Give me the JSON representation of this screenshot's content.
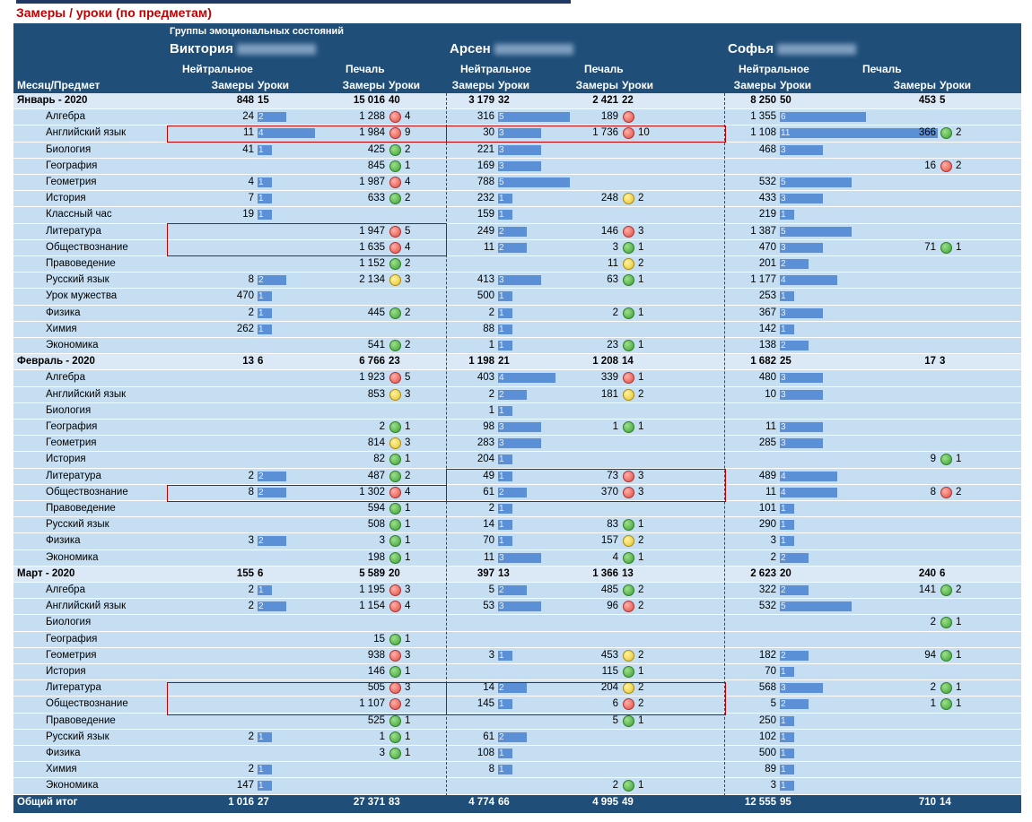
{
  "title": "Замеры / уроки (по предметам)",
  "header": {
    "groups_caption": "Группы эмоциональных состояний",
    "row_label": "Месяц/Предмет",
    "students": [
      "Виктория",
      "Арсен",
      "Софья"
    ],
    "state_neutral": "Нейтральное",
    "state_sad": "Печаль",
    "col_measures": "Замеры",
    "col_lessons": "Уроки"
  },
  "colors": {
    "header_bg": "#1f4e79",
    "row_bg": "#c5def2",
    "bar": "#5b8fd6",
    "highlight": "#c00000",
    "title": "#c00000"
  },
  "rows": [
    {
      "type": "month",
      "label": "Январь - 2020",
      "c": [
        [
          "848",
          "15"
        ],
        [
          "15 016",
          "40"
        ],
        [
          "3 179",
          "32"
        ],
        [
          "2 421",
          "22"
        ],
        [
          "8 250",
          "50"
        ],
        [
          "453",
          "5"
        ]
      ]
    },
    {
      "type": "subj",
      "label": "Алгебра",
      "c": [
        [
          "24",
          "2"
        ],
        [
          "1 288",
          "4",
          "red"
        ],
        [
          "316",
          "5"
        ],
        [
          "189",
          "",
          "red"
        ],
        [
          "1 355",
          "6"
        ],
        null
      ]
    },
    {
      "type": "subj",
      "label": "Английский язык",
      "c": [
        [
          "11",
          "4"
        ],
        [
          "1 984",
          "9",
          "red"
        ],
        [
          "30",
          "3"
        ],
        [
          "1 736",
          "10",
          "red"
        ],
        [
          "1 108",
          "11"
        ],
        [
          "366",
          "2",
          "green"
        ]
      ]
    },
    {
      "type": "subj",
      "label": "Биология",
      "c": [
        [
          "41",
          "1"
        ],
        [
          "425",
          "2",
          "green"
        ],
        [
          "221",
          "3"
        ],
        null,
        [
          "468",
          "3"
        ],
        null
      ]
    },
    {
      "type": "subj",
      "label": "География",
      "c": [
        null,
        [
          "845",
          "1",
          "green"
        ],
        [
          "169",
          "3"
        ],
        null,
        null,
        [
          "16",
          "2",
          "red"
        ]
      ]
    },
    {
      "type": "subj",
      "label": "Геометрия",
      "c": [
        [
          "4",
          "1"
        ],
        [
          "1 987",
          "4",
          "red"
        ],
        [
          "788",
          "5"
        ],
        null,
        [
          "532",
          "5"
        ],
        null
      ]
    },
    {
      "type": "subj",
      "label": "История",
      "c": [
        [
          "7",
          "1"
        ],
        [
          "633",
          "2",
          "green"
        ],
        [
          "232",
          "1"
        ],
        [
          "248",
          "2",
          "yellow"
        ],
        [
          "433",
          "3"
        ],
        null
      ]
    },
    {
      "type": "subj",
      "label": "Классный час",
      "c": [
        [
          "19",
          "1"
        ],
        null,
        [
          "159",
          "1"
        ],
        null,
        [
          "219",
          "1"
        ],
        null
      ]
    },
    {
      "type": "subj",
      "label": "Литература",
      "c": [
        null,
        [
          "1 947",
          "5",
          "red"
        ],
        [
          "249",
          "2"
        ],
        [
          "146",
          "3",
          "red"
        ],
        [
          "1 387",
          "5"
        ],
        null
      ]
    },
    {
      "type": "subj",
      "label": "Обществознание",
      "c": [
        null,
        [
          "1 635",
          "4",
          "red"
        ],
        [
          "11",
          "2"
        ],
        [
          "3",
          "1",
          "green"
        ],
        [
          "470",
          "3"
        ],
        [
          "71",
          "1",
          "green"
        ]
      ]
    },
    {
      "type": "subj",
      "label": "Правоведение",
      "c": [
        null,
        [
          "1 152",
          "2",
          "green"
        ],
        null,
        [
          "11",
          "2",
          "yellow"
        ],
        [
          "201",
          "2"
        ],
        null
      ]
    },
    {
      "type": "subj",
      "label": "Русский язык",
      "c": [
        [
          "8",
          "2"
        ],
        [
          "2 134",
          "3",
          "yellow"
        ],
        [
          "413",
          "3"
        ],
        [
          "63",
          "1",
          "green"
        ],
        [
          "1 177",
          "4"
        ],
        null
      ]
    },
    {
      "type": "subj",
      "label": "Урок мужества",
      "c": [
        [
          "470",
          "1"
        ],
        null,
        [
          "500",
          "1"
        ],
        null,
        [
          "253",
          "1"
        ],
        null
      ]
    },
    {
      "type": "subj",
      "label": "Физика",
      "c": [
        [
          "2",
          "1"
        ],
        [
          "445",
          "2",
          "green"
        ],
        [
          "2",
          "1"
        ],
        [
          "2",
          "1",
          "green"
        ],
        [
          "367",
          "3"
        ],
        null
      ]
    },
    {
      "type": "subj",
      "label": "Химия",
      "c": [
        [
          "262",
          "1"
        ],
        null,
        [
          "88",
          "1"
        ],
        null,
        [
          "142",
          "1"
        ],
        null
      ]
    },
    {
      "type": "subj",
      "label": "Экономика",
      "c": [
        null,
        [
          "541",
          "2",
          "green"
        ],
        [
          "1",
          "1"
        ],
        [
          "23",
          "1",
          "green"
        ],
        [
          "138",
          "2"
        ],
        null
      ]
    },
    {
      "type": "month",
      "label": "Февраль - 2020",
      "c": [
        [
          "13",
          "6"
        ],
        [
          "6 766",
          "23"
        ],
        [
          "1 198",
          "21"
        ],
        [
          "1 208",
          "14"
        ],
        [
          "1 682",
          "25"
        ],
        [
          "17",
          "3"
        ]
      ]
    },
    {
      "type": "subj",
      "label": "Алгебра",
      "c": [
        null,
        [
          "1 923",
          "5",
          "red"
        ],
        [
          "403",
          "4"
        ],
        [
          "339",
          "1",
          "red"
        ],
        [
          "480",
          "3"
        ],
        null
      ]
    },
    {
      "type": "subj",
      "label": "Английский язык",
      "c": [
        null,
        [
          "853",
          "3",
          "yellow"
        ],
        [
          "2",
          "2"
        ],
        [
          "181",
          "2",
          "yellow"
        ],
        [
          "10",
          "3"
        ],
        null
      ]
    },
    {
      "type": "subj",
      "label": "Биология",
      "c": [
        null,
        null,
        [
          "1",
          "1"
        ],
        null,
        null,
        null
      ]
    },
    {
      "type": "subj",
      "label": "География",
      "c": [
        null,
        [
          "2",
          "1",
          "green"
        ],
        [
          "98",
          "3"
        ],
        [
          "1",
          "1",
          "green"
        ],
        [
          "11",
          "3"
        ],
        null
      ]
    },
    {
      "type": "subj",
      "label": "Геометрия",
      "c": [
        null,
        [
          "814",
          "3",
          "yellow"
        ],
        [
          "283",
          "3"
        ],
        null,
        [
          "285",
          "3"
        ],
        null
      ]
    },
    {
      "type": "subj",
      "label": "История",
      "c": [
        null,
        [
          "82",
          "1",
          "green"
        ],
        [
          "204",
          "1"
        ],
        null,
        null,
        [
          "9",
          "1",
          "green"
        ]
      ]
    },
    {
      "type": "subj",
      "label": "Литература",
      "c": [
        [
          "2",
          "2"
        ],
        [
          "487",
          "2",
          "green"
        ],
        [
          "49",
          "1"
        ],
        [
          "73",
          "3",
          "red"
        ],
        [
          "489",
          "4"
        ],
        null
      ]
    },
    {
      "type": "subj",
      "label": "Обществознание",
      "c": [
        [
          "8",
          "2"
        ],
        [
          "1 302",
          "4",
          "red"
        ],
        [
          "61",
          "2"
        ],
        [
          "370",
          "3",
          "red"
        ],
        [
          "11",
          "4"
        ],
        [
          "8",
          "2",
          "red"
        ]
      ]
    },
    {
      "type": "subj",
      "label": "Правоведение",
      "c": [
        null,
        [
          "594",
          "1",
          "green"
        ],
        [
          "2",
          "1"
        ],
        null,
        [
          "101",
          "1"
        ],
        null
      ]
    },
    {
      "type": "subj",
      "label": "Русский язык",
      "c": [
        null,
        [
          "508",
          "1",
          "green"
        ],
        [
          "14",
          "1"
        ],
        [
          "83",
          "1",
          "green"
        ],
        [
          "290",
          "1"
        ],
        null
      ]
    },
    {
      "type": "subj",
      "label": "Физика",
      "c": [
        [
          "3",
          "2"
        ],
        [
          "3",
          "1",
          "green"
        ],
        [
          "70",
          "1"
        ],
        [
          "157",
          "2",
          "yellow"
        ],
        [
          "3",
          "1"
        ],
        null
      ]
    },
    {
      "type": "subj",
      "label": "Экономика",
      "c": [
        null,
        [
          "198",
          "1",
          "green"
        ],
        [
          "11",
          "3"
        ],
        [
          "4",
          "1",
          "green"
        ],
        [
          "2",
          "2"
        ],
        null
      ]
    },
    {
      "type": "month",
      "label": "Март - 2020",
      "c": [
        [
          "155",
          "6"
        ],
        [
          "5 589",
          "20"
        ],
        [
          "397",
          "13"
        ],
        [
          "1 366",
          "13"
        ],
        [
          "2 623",
          "20"
        ],
        [
          "240",
          "6"
        ]
      ]
    },
    {
      "type": "subj",
      "label": "Алгебра",
      "c": [
        [
          "2",
          "1"
        ],
        [
          "1 195",
          "3",
          "red"
        ],
        [
          "5",
          "2"
        ],
        [
          "485",
          "2",
          "green"
        ],
        [
          "322",
          "2"
        ],
        [
          "141",
          "2",
          "green"
        ]
      ]
    },
    {
      "type": "subj",
      "label": "Английский язык",
      "c": [
        [
          "2",
          "2"
        ],
        [
          "1 154",
          "4",
          "red"
        ],
        [
          "53",
          "3"
        ],
        [
          "96",
          "2",
          "red"
        ],
        [
          "532",
          "5"
        ],
        null
      ]
    },
    {
      "type": "subj",
      "label": "Биология",
      "c": [
        null,
        null,
        null,
        null,
        null,
        [
          "2",
          "1",
          "green"
        ]
      ]
    },
    {
      "type": "subj",
      "label": "География",
      "c": [
        null,
        [
          "15",
          "1",
          "green"
        ],
        null,
        null,
        null,
        null
      ]
    },
    {
      "type": "subj",
      "label": "Геометрия",
      "c": [
        null,
        [
          "938",
          "3",
          "red"
        ],
        [
          "3",
          "1"
        ],
        [
          "453",
          "2",
          "yellow"
        ],
        [
          "182",
          "2"
        ],
        [
          "94",
          "1",
          "green"
        ]
      ]
    },
    {
      "type": "subj",
      "label": "История",
      "c": [
        null,
        [
          "146",
          "1",
          "green"
        ],
        null,
        [
          "115",
          "1",
          "green"
        ],
        [
          "70",
          "1"
        ],
        null
      ]
    },
    {
      "type": "subj",
      "label": "Литература",
      "c": [
        null,
        [
          "505",
          "3",
          "red"
        ],
        [
          "14",
          "2"
        ],
        [
          "204",
          "2",
          "yellow"
        ],
        [
          "568",
          "3"
        ],
        [
          "2",
          "1",
          "green"
        ]
      ]
    },
    {
      "type": "subj",
      "label": "Обществознание",
      "c": [
        null,
        [
          "1 107",
          "2",
          "red"
        ],
        [
          "145",
          "1"
        ],
        [
          "6",
          "2",
          "red"
        ],
        [
          "5",
          "2"
        ],
        [
          "1",
          "1",
          "green"
        ]
      ]
    },
    {
      "type": "subj",
      "label": "Правоведение",
      "c": [
        null,
        [
          "525",
          "1",
          "green"
        ],
        null,
        [
          "5",
          "1",
          "green"
        ],
        [
          "250",
          "1"
        ],
        null
      ]
    },
    {
      "type": "subj",
      "label": "Русский язык",
      "c": [
        [
          "2",
          "1"
        ],
        [
          "1",
          "1",
          "green"
        ],
        [
          "61",
          "2"
        ],
        null,
        [
          "102",
          "1"
        ],
        null
      ]
    },
    {
      "type": "subj",
      "label": "Физика",
      "c": [
        null,
        [
          "3",
          "1",
          "green"
        ],
        [
          "108",
          "1"
        ],
        null,
        [
          "500",
          "1"
        ],
        null
      ]
    },
    {
      "type": "subj",
      "label": "Химия",
      "c": [
        [
          "2",
          "1"
        ],
        null,
        [
          "8",
          "1"
        ],
        null,
        [
          "89",
          "1"
        ],
        null
      ]
    },
    {
      "type": "subj",
      "label": "Экономика",
      "c": [
        [
          "147",
          "1"
        ],
        null,
        null,
        [
          "2",
          "1",
          "green"
        ],
        [
          "3",
          "1"
        ],
        null
      ]
    },
    {
      "type": "total",
      "label": "Общий итог",
      "c": [
        [
          "1 016",
          "27"
        ],
        [
          "27 371",
          "83"
        ],
        [
          "4 774",
          "66"
        ],
        [
          "4 995",
          "49"
        ],
        [
          "12 555",
          "95"
        ],
        [
          "710",
          "14"
        ]
      ]
    }
  ]
}
